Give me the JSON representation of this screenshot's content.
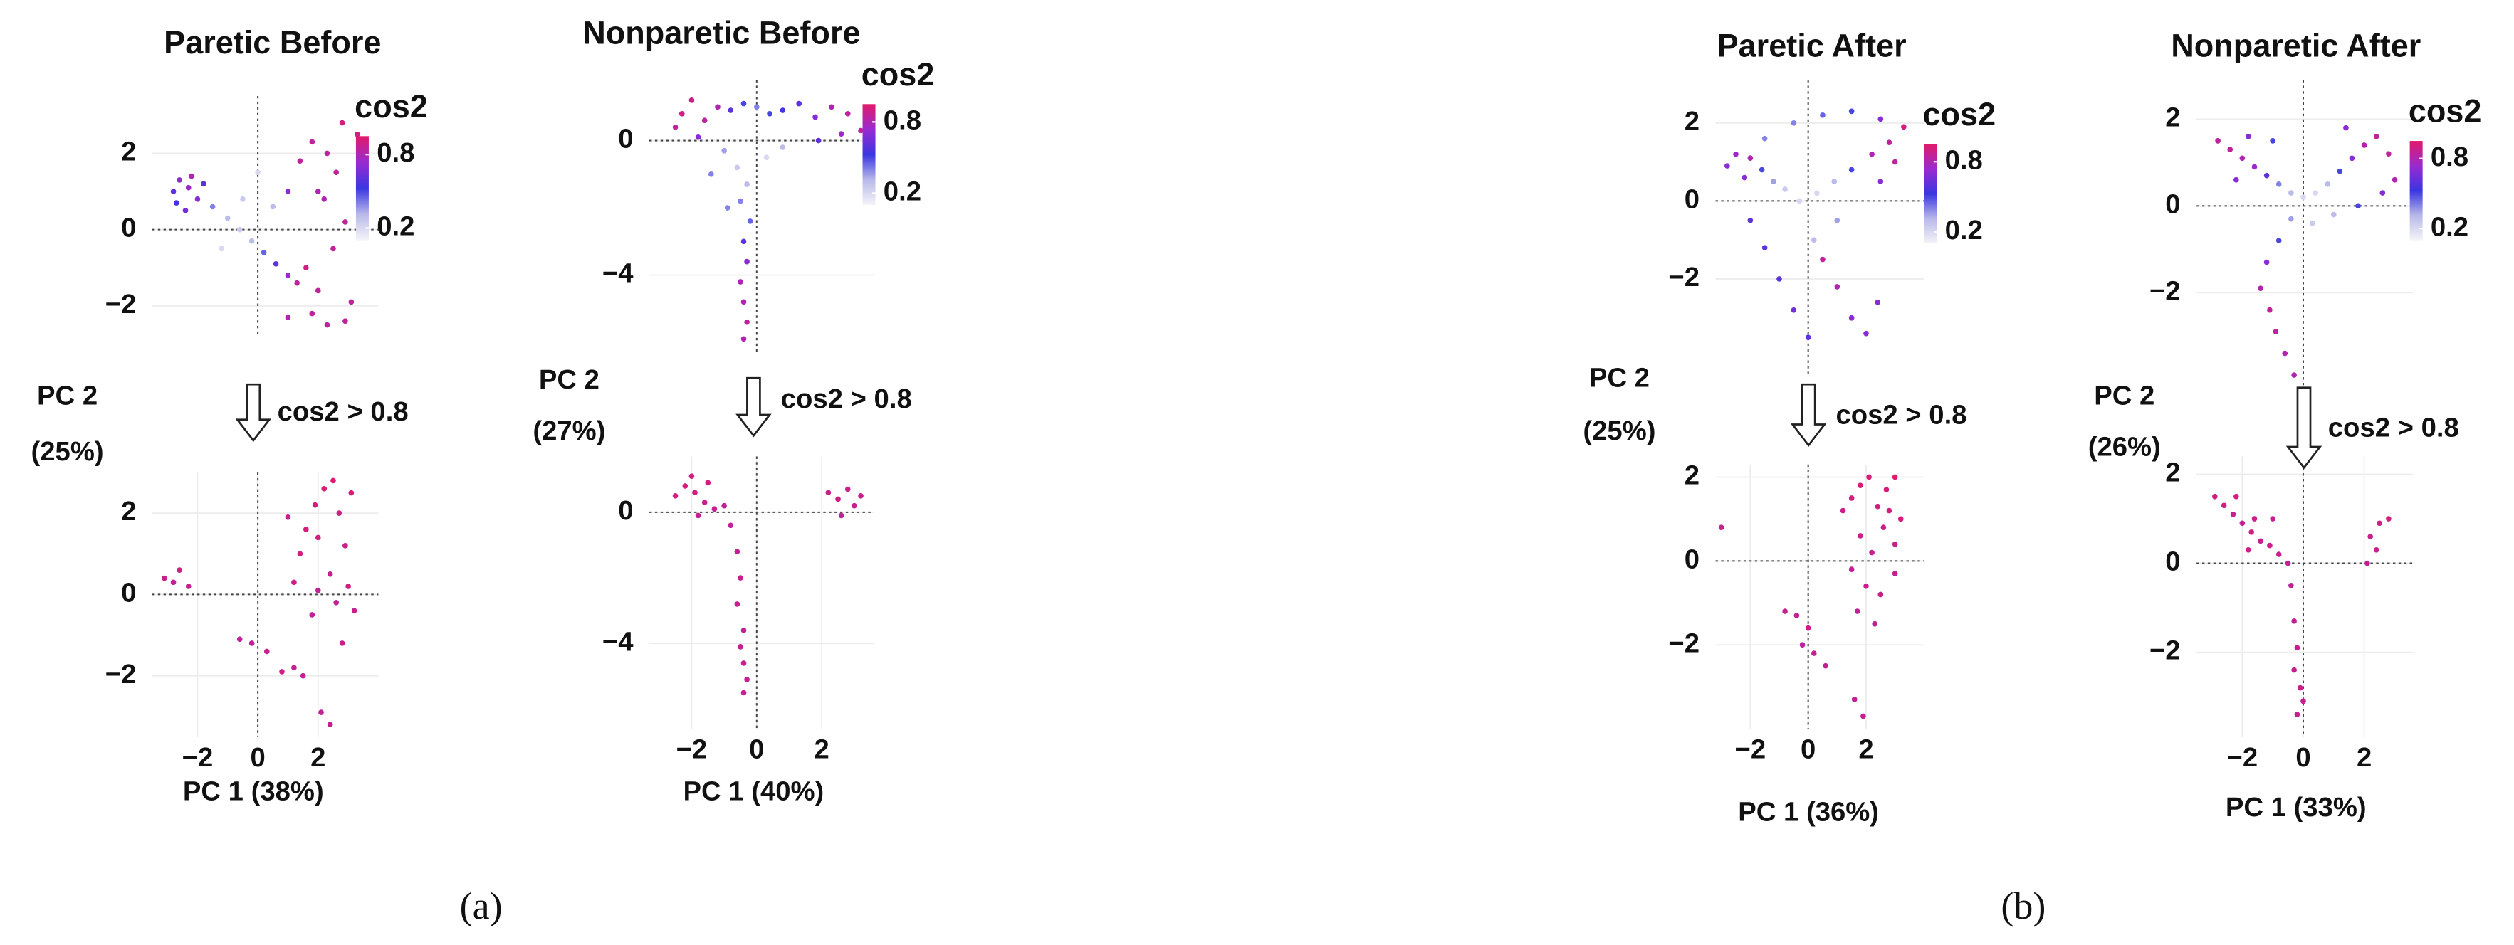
{
  "panel_labels": [
    "(a)",
    "(b)"
  ],
  "chart_data": [
    {
      "type": "scatter",
      "title": "Paretic Before",
      "grid": true,
      "zero_lines": true,
      "xlim": [
        -3.5,
        4
      ],
      "ylim": [
        -2.8,
        3.5
      ],
      "yticks": [
        {
          "value": -2,
          "label": "−2"
        },
        0,
        2
      ],
      "colorbar": {
        "title": "cos2",
        "lim": [
          0.1,
          0.95
        ],
        "ticks": [
          0.8,
          0.2
        ],
        "colors": [
          "#f4f4f8",
          "#b8b8ea",
          "#3a36e0",
          "#9a2ad0",
          "#e01a6a"
        ]
      },
      "x": [
        -2.8,
        -2.6,
        -2.3,
        -2.0,
        -2.4,
        -2.7,
        -2.2,
        -1.8,
        -1.5,
        -1.0,
        -0.6,
        -0.2,
        0.2,
        0.6,
        1.0,
        1.3,
        1.6,
        2.0,
        -1.2,
        -0.5,
        0,
        0.5,
        1.0,
        1.4,
        1.8,
        2.3,
        2.8,
        2.6,
        2.2,
        2.9,
        2.5,
        1.8,
        2.3,
        2.9,
        3.1,
        1.0,
        3.3,
        2.0
      ],
      "values": [
        1.0,
        1.3,
        1.1,
        0.8,
        0.5,
        0.7,
        1.4,
        1.2,
        0.6,
        0.3,
        0.0,
        -0.3,
        -0.6,
        -0.9,
        -1.2,
        -1.4,
        -1.0,
        -1.6,
        -0.5,
        0.8,
        1.5,
        0.6,
        1.0,
        1.8,
        2.3,
        2.0,
        2.8,
        1.5,
        0.8,
        0.2,
        -0.5,
        -2.2,
        -2.5,
        -2.4,
        -1.9,
        -2.3,
        2.5,
        1.0
      ],
      "cos2": [
        0.6,
        0.7,
        0.75,
        0.7,
        0.65,
        0.55,
        0.8,
        0.6,
        0.4,
        0.3,
        0.25,
        0.3,
        0.45,
        0.6,
        0.75,
        0.85,
        0.9,
        0.85,
        0.2,
        0.25,
        0.2,
        0.3,
        0.7,
        0.85,
        0.85,
        0.85,
        0.9,
        0.85,
        0.8,
        0.85,
        0.85,
        0.85,
        0.85,
        0.85,
        0.85,
        0.8,
        0.9,
        0.8
      ]
    },
    {
      "type": "scatter",
      "grid": true,
      "zero_lines": true,
      "annotation": "cos2 > 0.8",
      "ylabel": [
        "PC 2",
        "(25%)"
      ],
      "xlabel": "PC 1 (38%)",
      "xlim": [
        -3.5,
        4
      ],
      "ylim": [
        -3.5,
        3
      ],
      "xticks": [
        {
          "value": -2,
          "label": "−2"
        },
        0,
        2
      ],
      "yticks": [
        {
          "value": -2,
          "label": "−2"
        },
        0,
        2
      ],
      "colorbar": {
        "lim": [
          0.1,
          0.95
        ],
        "colors": [
          "#f4f4f8",
          "#b8b8ea",
          "#3a36e0",
          "#9a2ad0",
          "#e01a6a"
        ]
      },
      "x": [
        -3.1,
        -2.8,
        -2.6,
        -2.3,
        -0.6,
        -0.2,
        0.3,
        0.8,
        1.2,
        1.5,
        1.2,
        1.4,
        1.6,
        1.9,
        2.2,
        2.5,
        2.7,
        2.9,
        2.4,
        2.6,
        1.8,
        2.0,
        3.0,
        3.2,
        2.8,
        2.1,
        2.4,
        1.0,
        2.0,
        3.1
      ],
      "values": [
        0.4,
        0.3,
        0.6,
        0.2,
        -1.1,
        -1.2,
        -1.4,
        -1.9,
        -1.8,
        -2.0,
        0.3,
        1.0,
        1.6,
        2.2,
        2.6,
        2.8,
        2.0,
        1.2,
        0.5,
        -0.2,
        -0.5,
        0.1,
        0.2,
        -0.4,
        -1.2,
        -2.9,
        -3.2,
        1.9,
        1.4,
        2.5
      ],
      "cos2": [
        0.88,
        0.86,
        0.9,
        0.87,
        0.85,
        0.86,
        0.88,
        0.9,
        0.87,
        0.86,
        0.89,
        0.9,
        0.91,
        0.92,
        0.93,
        0.94,
        0.9,
        0.88,
        0.87,
        0.86,
        0.85,
        0.86,
        0.9,
        0.88,
        0.87,
        0.86,
        0.88,
        0.87,
        0.9,
        0.92
      ]
    },
    {
      "type": "scatter",
      "title": "Nonparetic Before",
      "grid": true,
      "zero_lines": true,
      "xlim": [
        -3.3,
        3.6
      ],
      "ylim": [
        -6.3,
        1.8
      ],
      "yticks": [
        {
          "value": -4,
          "label": "−4"
        },
        0
      ],
      "colorbar": {
        "title": "cos2",
        "lim": [
          0.1,
          0.95
        ],
        "ticks": [
          0.8,
          0.2
        ],
        "colors": [
          "#f4f4f8",
          "#b8b8ea",
          "#3a36e0",
          "#9a2ad0",
          "#e01a6a"
        ]
      },
      "x": [
        -2.3,
        -2.0,
        -1.6,
        -1.2,
        -0.8,
        -0.4,
        0,
        0.4,
        0.8,
        1.3,
        1.8,
        2.3,
        2.8,
        3.2,
        2.6,
        1.9,
        -2.5,
        -1.8,
        -1.0,
        -0.6,
        -0.3,
        -0.5,
        -0.2,
        -0.4,
        -0.3,
        -0.5,
        -0.4,
        -0.3,
        -0.4,
        0.3,
        0.8,
        -1.4,
        -0.9
      ],
      "values": [
        0.8,
        1.2,
        0.6,
        1.0,
        0.9,
        1.1,
        1.0,
        0.8,
        0.9,
        1.1,
        0.7,
        1.0,
        0.8,
        0.3,
        0.2,
        0.0,
        0.4,
        0.1,
        -0.3,
        -0.8,
        -1.3,
        -1.8,
        -2.4,
        -3.0,
        -3.6,
        -4.2,
        -4.8,
        -5.4,
        -5.9,
        -0.5,
        -0.2,
        -1.0,
        -2.0
      ],
      "cos2": [
        0.9,
        0.9,
        0.85,
        0.8,
        0.6,
        0.5,
        0.4,
        0.5,
        0.55,
        0.6,
        0.7,
        0.8,
        0.85,
        0.85,
        0.75,
        0.6,
        0.85,
        0.7,
        0.35,
        0.25,
        0.3,
        0.4,
        0.45,
        0.6,
        0.7,
        0.8,
        0.8,
        0.85,
        0.8,
        0.2,
        0.3,
        0.4,
        0.4
      ]
    },
    {
      "type": "scatter",
      "grid": true,
      "zero_lines": true,
      "annotation": "cos2 > 0.8",
      "ylabel": [
        "PC 2",
        "(27%)"
      ],
      "xlabel": "PC 1 (40%)",
      "xlim": [
        -3.3,
        3.6
      ],
      "ylim": [
        -6.6,
        1.7
      ],
      "xticks": [
        {
          "value": -2,
          "label": "−2"
        },
        0,
        2
      ],
      "yticks": [
        {
          "value": -4,
          "label": "−4"
        },
        0
      ],
      "colorbar": {
        "lim": [
          0.1,
          0.95
        ],
        "colors": [
          "#f4f4f8",
          "#b8b8ea",
          "#3a36e0",
          "#9a2ad0",
          "#e01a6a"
        ]
      },
      "x": [
        -2.5,
        -2.2,
        -1.9,
        -1.6,
        -1.3,
        -1.5,
        -1.0,
        -0.8,
        -0.6,
        -0.5,
        -0.6,
        -0.4,
        -0.5,
        -0.4,
        -0.3,
        -0.4,
        2.2,
        2.5,
        2.8,
        3.0,
        2.6,
        3.2,
        -2.0,
        -1.8
      ],
      "values": [
        0.5,
        0.8,
        0.6,
        0.3,
        0.1,
        0.9,
        0.2,
        -0.4,
        -1.2,
        -2.0,
        -2.8,
        -3.6,
        -4.1,
        -4.6,
        -5.1,
        -5.5,
        0.6,
        0.4,
        0.7,
        0.2,
        -0.1,
        0.5,
        1.1,
        -0.1
      ],
      "cos2": [
        0.9,
        0.92,
        0.9,
        0.88,
        0.87,
        0.9,
        0.86,
        0.85,
        0.86,
        0.87,
        0.88,
        0.87,
        0.86,
        0.88,
        0.87,
        0.86,
        0.88,
        0.9,
        0.89,
        0.87,
        0.86,
        0.88,
        0.9,
        0.87
      ]
    },
    {
      "type": "scatter",
      "title": "Paretic After",
      "grid": true,
      "zero_lines": true,
      "xlim": [
        -3.2,
        4.0
      ],
      "ylim": [
        -4.5,
        3.1
      ],
      "yticks": [
        {
          "value": -2,
          "label": "−2"
        },
        0,
        2
      ],
      "colorbar": {
        "title": "cos2",
        "lim": [
          0.1,
          0.95
        ],
        "ticks": [
          0.8,
          0.2
        ],
        "colors": [
          "#f4f4f8",
          "#b8b8ea",
          "#3a36e0",
          "#9a2ad0",
          "#e01a6a"
        ]
      },
      "x": [
        -2.5,
        -2.8,
        -2.2,
        -2.0,
        -1.6,
        -1.2,
        -0.8,
        -0.3,
        0.3,
        0.9,
        1.5,
        2.2,
        2.8,
        3.3,
        3.0,
        2.5,
        -1.5,
        -0.5,
        0.5,
        1.5,
        2.5,
        -2.0,
        -1.5,
        -1.0,
        -0.5,
        0,
        0.5,
        1.0,
        1.5,
        2.0,
        2.4,
        1.0,
        0.2
      ],
      "values": [
        1.2,
        0.9,
        0.6,
        1.1,
        0.8,
        0.5,
        0.3,
        0.0,
        0.2,
        0.5,
        0.8,
        1.2,
        1.5,
        1.9,
        1.0,
        0.5,
        1.6,
        2.0,
        2.2,
        2.3,
        2.1,
        -0.5,
        -1.2,
        -2.0,
        -2.8,
        -3.5,
        -1.5,
        -2.2,
        -3.0,
        -3.4,
        -2.6,
        -0.5,
        -1.0
      ],
      "cos2": [
        0.75,
        0.7,
        0.7,
        0.8,
        0.5,
        0.35,
        0.25,
        0.2,
        0.2,
        0.3,
        0.5,
        0.8,
        0.85,
        0.9,
        0.85,
        0.7,
        0.4,
        0.4,
        0.45,
        0.5,
        0.7,
        0.6,
        0.6,
        0.6,
        0.65,
        0.6,
        0.85,
        0.8,
        0.7,
        0.7,
        0.7,
        0.35,
        0.3
      ]
    },
    {
      "type": "scatter",
      "grid": true,
      "zero_lines": true,
      "annotation": "cos2 > 0.8",
      "ylabel": [
        "PC 2",
        "(25%)"
      ],
      "xlabel": "PC 1 (36%)",
      "xlim": [
        -3.2,
        4.0
      ],
      "ylim": [
        -4.0,
        2.3
      ],
      "xticks": [
        {
          "value": -2,
          "label": "−2"
        },
        0,
        2
      ],
      "yticks": [
        {
          "value": -2,
          "label": "−2"
        },
        0,
        2
      ],
      "colorbar": {
        "lim": [
          0.1,
          0.95
        ],
        "colors": [
          "#f4f4f8",
          "#b8b8ea",
          "#3a36e0",
          "#9a2ad0",
          "#e01a6a"
        ]
      },
      "x": [
        -3.0,
        1.5,
        1.8,
        2.1,
        2.4,
        2.7,
        3.0,
        3.2,
        3.0,
        2.6,
        2.2,
        1.8,
        1.5,
        2.0,
        2.5,
        3.0,
        1.7,
        2.3,
        -0.8,
        -0.4,
        0,
        0.2,
        0.6,
        -0.2,
        1.6,
        1.9,
        2.8,
        1.2
      ],
      "values": [
        0.8,
        1.5,
        1.8,
        2.0,
        1.3,
        1.7,
        2.0,
        1.0,
        0.4,
        0.8,
        0.2,
        0.6,
        -0.2,
        -0.6,
        -0.8,
        -0.3,
        -1.2,
        -1.5,
        -1.2,
        -1.3,
        -1.6,
        -2.2,
        -2.5,
        -2.0,
        -3.3,
        -3.7,
        1.2,
        1.2
      ],
      "cos2": [
        0.88,
        0.9,
        0.92,
        0.93,
        0.9,
        0.91,
        0.94,
        0.9,
        0.88,
        0.89,
        0.87,
        0.88,
        0.86,
        0.87,
        0.88,
        0.87,
        0.86,
        0.86,
        0.87,
        0.86,
        0.88,
        0.87,
        0.86,
        0.85,
        0.86,
        0.87,
        0.91,
        0.88
      ]
    },
    {
      "type": "scatter",
      "title": "Nonparetic After",
      "grid": true,
      "zero_lines": true,
      "xlim": [
        -3.5,
        3.6
      ],
      "ylim": [
        -4.3,
        2.9
      ],
      "yticks": [
        {
          "value": -2,
          "label": "−2"
        },
        0,
        2
      ],
      "colorbar": {
        "title": "cos2",
        "lim": [
          0.1,
          0.95
        ],
        "ticks": [
          0.8,
          0.2
        ],
        "colors": [
          "#f4f4f8",
          "#b8b8ea",
          "#3a36e0",
          "#9a2ad0",
          "#e01a6a"
        ]
      },
      "x": [
        -2.8,
        -2.4,
        -2.0,
        -1.6,
        -1.2,
        -0.8,
        -0.4,
        0,
        0.4,
        0.8,
        1.2,
        1.6,
        2.0,
        2.4,
        2.8,
        3.0,
        2.6,
        1.8,
        -1.8,
        -1.0,
        -0.4,
        -0.8,
        -1.2,
        -1.4,
        -1.1,
        -0.9,
        -0.6,
        -0.3,
        0.3,
        1.0,
        -2.2,
        1.4
      ],
      "values": [
        1.5,
        1.3,
        1.1,
        0.9,
        0.7,
        0.5,
        0.3,
        0.2,
        0.3,
        0.5,
        0.8,
        1.1,
        1.4,
        1.6,
        1.2,
        0.6,
        0.3,
        0.0,
        1.6,
        1.5,
        -0.3,
        -0.8,
        -1.3,
        -1.9,
        -2.4,
        -2.9,
        -3.4,
        -3.9,
        -0.4,
        -0.2,
        0.6,
        1.8
      ],
      "cos2": [
        0.85,
        0.85,
        0.8,
        0.75,
        0.6,
        0.4,
        0.3,
        0.2,
        0.2,
        0.3,
        0.5,
        0.7,
        0.8,
        0.85,
        0.85,
        0.8,
        0.7,
        0.5,
        0.7,
        0.5,
        0.35,
        0.5,
        0.7,
        0.8,
        0.85,
        0.85,
        0.8,
        0.8,
        0.25,
        0.3,
        0.7,
        0.7
      ]
    },
    {
      "type": "scatter",
      "grid": true,
      "zero_lines": true,
      "annotation": "cos2 > 0.8",
      "ylabel": [
        "PC 2",
        "(26%)"
      ],
      "xlabel": "PC 1 (33%)",
      "xlim": [
        -3.5,
        3.6
      ],
      "ylim": [
        -3.9,
        2.4
      ],
      "xticks": [
        {
          "value": -2,
          "label": "−2"
        },
        0,
        2
      ],
      "yticks": [
        {
          "value": -2,
          "label": "−2"
        },
        0,
        2
      ],
      "colorbar": {
        "lim": [
          0.1,
          0.95
        ],
        "colors": [
          "#f4f4f8",
          "#b8b8ea",
          "#3a36e0",
          "#9a2ad0",
          "#e01a6a"
        ]
      },
      "x": [
        -2.9,
        -2.6,
        -2.3,
        -2.0,
        -1.7,
        -1.4,
        -1.1,
        -1.6,
        -2.2,
        -0.8,
        -0.5,
        2.2,
        2.5,
        2.8,
        2.4,
        2.1,
        -0.4,
        -0.3,
        -0.2,
        -0.3,
        -0.1,
        0,
        -0.2,
        -1.8,
        -1.0
      ],
      "values": [
        1.5,
        1.3,
        1.1,
        0.9,
        0.7,
        0.5,
        0.4,
        1.0,
        1.5,
        0.2,
        0.0,
        0.6,
        0.9,
        1.0,
        0.3,
        0.0,
        -0.5,
        -1.3,
        -1.9,
        -2.4,
        -2.8,
        -3.1,
        -3.4,
        0.3,
        1.0
      ],
      "cos2": [
        0.9,
        0.9,
        0.88,
        0.87,
        0.9,
        0.86,
        0.88,
        0.89,
        0.9,
        0.87,
        0.86,
        0.88,
        0.9,
        0.91,
        0.87,
        0.86,
        0.85,
        0.86,
        0.87,
        0.88,
        0.87,
        0.86,
        0.87,
        0.88,
        0.87
      ]
    }
  ]
}
